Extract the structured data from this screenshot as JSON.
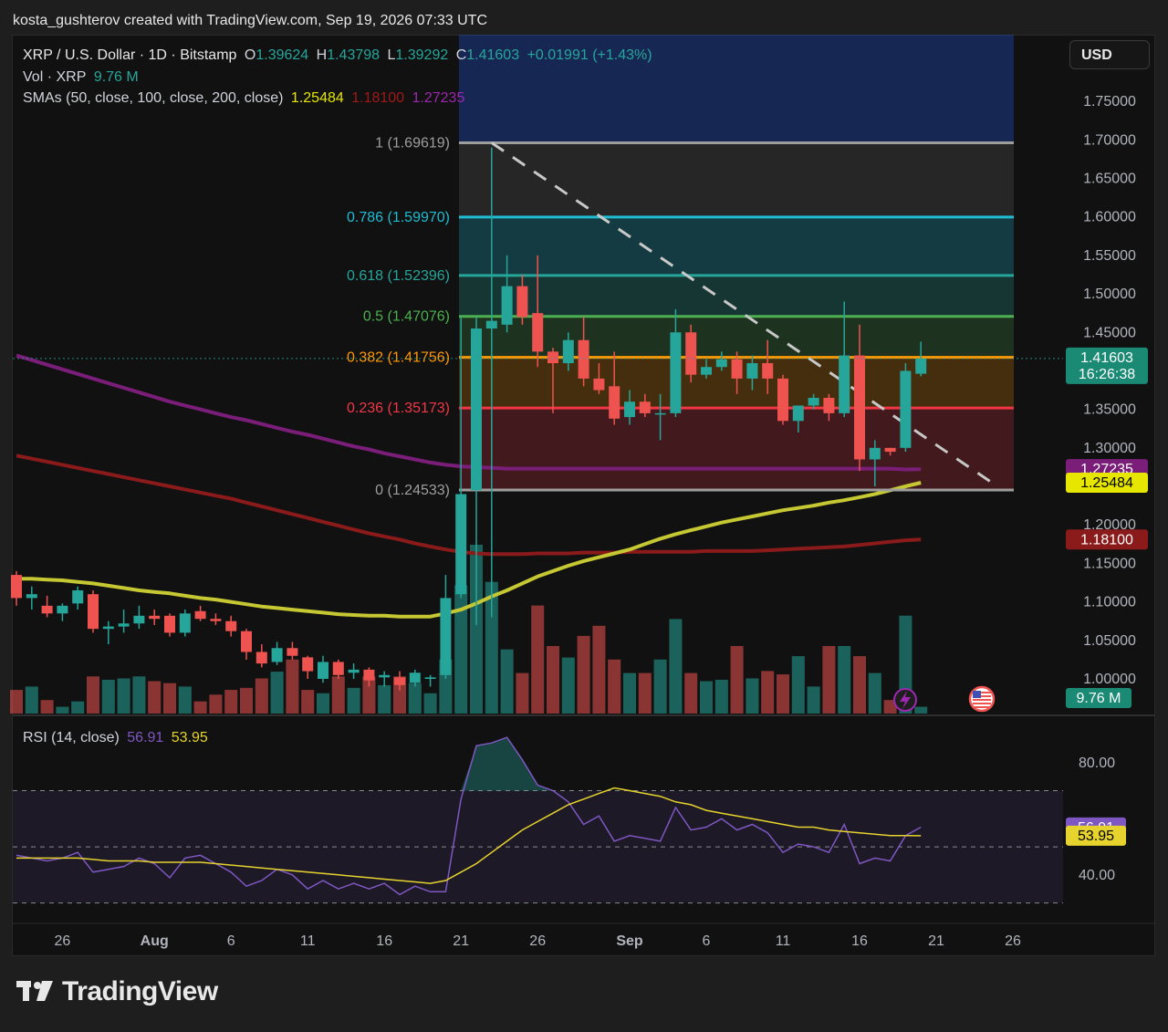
{
  "attribution": "kosta_gushterov created with TradingView.com, Sep 19, 2026 07:33 UTC",
  "legend": {
    "symbol": "XRP / U.S. Dollar · 1D · Bitstamp",
    "o_label": "O",
    "o": "1.39624",
    "h_label": "H",
    "h": "1.43798",
    "l_label": "L",
    "l": "1.39292",
    "c_label": "C",
    "c": "1.41603",
    "change": "+0.01991 (+1.43%)",
    "vol_label": "Vol · XRP",
    "vol": "9.76 M",
    "sma_label": "SMAs (50, close, 100, close, 200, close)",
    "sma50": "1.25484",
    "sma100": "1.18100",
    "sma200": "1.27235"
  },
  "currency_button": "USD",
  "rsi_legend": {
    "label": "RSI (14, close)",
    "rsi": "56.91",
    "ma": "53.95"
  },
  "brand": "TradingView",
  "colors": {
    "up": "#26a69a",
    "down": "#ef5350",
    "sma50": "#c5c832",
    "sma100": "#8b1a1a",
    "sma200": "#7b1e7a",
    "rsi": "#7e57c2",
    "rsi_ma": "#e6d32e"
  },
  "chart_data": [
    {
      "type": "candlestick",
      "title": "XRP / U.S. Dollar · 1D · Bitstamp",
      "ylim": [
        0.955,
        1.82
      ],
      "y_ticks": [
        "1.75000",
        "1.70000",
        "1.65000",
        "1.60000",
        "1.55000",
        "1.50000",
        "1.45000",
        "1.35000",
        "1.30000",
        "1.20000",
        "1.15000",
        "1.10000",
        "1.05000",
        "1.00000"
      ],
      "x_ticks": [
        "26",
        "Aug",
        "6",
        "11",
        "16",
        "21",
        "26",
        "Sep",
        "6",
        "11",
        "16",
        "21",
        "26"
      ],
      "candles": [
        {
          "d": "Jul 23",
          "o": 1.135,
          "h": 1.14,
          "l": 1.095,
          "c": 1.105
        },
        {
          "d": "Jul 24",
          "o": 1.105,
          "h": 1.12,
          "l": 1.09,
          "c": 1.11
        },
        {
          "d": "Jul 25",
          "o": 1.095,
          "h": 1.108,
          "l": 1.08,
          "c": 1.085
        },
        {
          "d": "Jul 26",
          "o": 1.085,
          "h": 1.098,
          "l": 1.075,
          "c": 1.095
        },
        {
          "d": "Jul 27",
          "o": 1.098,
          "h": 1.12,
          "l": 1.09,
          "c": 1.115
        },
        {
          "d": "Jul 28",
          "o": 1.11,
          "h": 1.115,
          "l": 1.06,
          "c": 1.065
        },
        {
          "d": "Jul 29",
          "o": 1.065,
          "h": 1.075,
          "l": 1.045,
          "c": 1.068
        },
        {
          "d": "Jul 30",
          "o": 1.068,
          "h": 1.09,
          "l": 1.06,
          "c": 1.072
        },
        {
          "d": "Jul 31",
          "o": 1.072,
          "h": 1.095,
          "l": 1.065,
          "c": 1.082
        },
        {
          "d": "Aug 1",
          "o": 1.082,
          "h": 1.09,
          "l": 1.07,
          "c": 1.078
        },
        {
          "d": "Aug 2",
          "o": 1.082,
          "h": 1.085,
          "l": 1.055,
          "c": 1.06
        },
        {
          "d": "Aug 3",
          "o": 1.06,
          "h": 1.09,
          "l": 1.055,
          "c": 1.085
        },
        {
          "d": "Aug 4",
          "o": 1.088,
          "h": 1.095,
          "l": 1.075,
          "c": 1.078
        },
        {
          "d": "Aug 5",
          "o": 1.078,
          "h": 1.085,
          "l": 1.07,
          "c": 1.075
        },
        {
          "d": "Aug 6",
          "o": 1.075,
          "h": 1.082,
          "l": 1.055,
          "c": 1.062
        },
        {
          "d": "Aug 7",
          "o": 1.062,
          "h": 1.065,
          "l": 1.025,
          "c": 1.035
        },
        {
          "d": "Aug 8",
          "o": 1.035,
          "h": 1.045,
          "l": 1.015,
          "c": 1.02
        },
        {
          "d": "Aug 9",
          "o": 1.022,
          "h": 1.048,
          "l": 1.018,
          "c": 1.04
        },
        {
          "d": "Aug 10",
          "o": 1.04,
          "h": 1.048,
          "l": 1.025,
          "c": 1.03
        },
        {
          "d": "Aug 11",
          "o": 1.028,
          "h": 1.03,
          "l": 1.0,
          "c": 1.01
        },
        {
          "d": "Aug 12",
          "o": 1.0,
          "h": 1.03,
          "l": 0.995,
          "c": 1.022
        },
        {
          "d": "Aug 13",
          "o": 1.022,
          "h": 1.025,
          "l": 1.0,
          "c": 1.005
        },
        {
          "d": "Aug 14",
          "o": 1.008,
          "h": 1.02,
          "l": 1.0,
          "c": 1.012
        },
        {
          "d": "Aug 15",
          "o": 1.012,
          "h": 1.015,
          "l": 0.99,
          "c": 0.998
        },
        {
          "d": "Aug 16",
          "o": 1.002,
          "h": 1.01,
          "l": 0.99,
          "c": 1.005
        },
        {
          "d": "Aug 17",
          "o": 1.002,
          "h": 1.01,
          "l": 0.985,
          "c": 0.992
        },
        {
          "d": "Aug 18",
          "o": 0.995,
          "h": 1.012,
          "l": 0.99,
          "c": 1.008
        },
        {
          "d": "Aug 19",
          "o": 1.0,
          "h": 1.005,
          "l": 0.99,
          "c": 1.002
        },
        {
          "d": "Aug 20",
          "o": 1.005,
          "h": 1.135,
          "l": 1.0,
          "c": 1.105
        },
        {
          "d": "Aug 21",
          "o": 1.11,
          "h": 1.47,
          "l": 1.105,
          "c": 1.24
        },
        {
          "d": "Aug 22",
          "o": 1.245,
          "h": 1.47,
          "l": 1.07,
          "c": 1.455
        },
        {
          "d": "Aug 23",
          "o": 1.455,
          "h": 1.69,
          "l": 1.08,
          "c": 1.465
        },
        {
          "d": "Aug 24",
          "o": 1.46,
          "h": 1.55,
          "l": 1.45,
          "c": 1.51
        },
        {
          "d": "Aug 25",
          "o": 1.51,
          "h": 1.525,
          "l": 1.46,
          "c": 1.47
        },
        {
          "d": "Aug 26",
          "o": 1.475,
          "h": 1.55,
          "l": 1.405,
          "c": 1.425
        },
        {
          "d": "Aug 27",
          "o": 1.425,
          "h": 1.43,
          "l": 1.345,
          "c": 1.41
        },
        {
          "d": "Aug 28",
          "o": 1.41,
          "h": 1.45,
          "l": 1.4,
          "c": 1.44
        },
        {
          "d": "Aug 29",
          "o": 1.44,
          "h": 1.47,
          "l": 1.38,
          "c": 1.39
        },
        {
          "d": "Aug 30",
          "o": 1.39,
          "h": 1.41,
          "l": 1.37,
          "c": 1.375
        },
        {
          "d": "Aug 31",
          "o": 1.38,
          "h": 1.425,
          "l": 1.33,
          "c": 1.338
        },
        {
          "d": "Sep 1",
          "o": 1.34,
          "h": 1.375,
          "l": 1.33,
          "c": 1.36
        },
        {
          "d": "Sep 2",
          "o": 1.36,
          "h": 1.37,
          "l": 1.34,
          "c": 1.345
        },
        {
          "d": "Sep 3",
          "o": 1.345,
          "h": 1.37,
          "l": 1.31,
          "c": 1.345
        },
        {
          "d": "Sep 4",
          "o": 1.345,
          "h": 1.48,
          "l": 1.34,
          "c": 1.45
        },
        {
          "d": "Sep 5",
          "o": 1.45,
          "h": 1.46,
          "l": 1.385,
          "c": 1.395
        },
        {
          "d": "Sep 6",
          "o": 1.395,
          "h": 1.415,
          "l": 1.39,
          "c": 1.405
        },
        {
          "d": "Sep 7",
          "o": 1.405,
          "h": 1.425,
          "l": 1.4,
          "c": 1.415
        },
        {
          "d": "Sep 8",
          "o": 1.415,
          "h": 1.425,
          "l": 1.37,
          "c": 1.39
        },
        {
          "d": "Sep 9",
          "o": 1.39,
          "h": 1.42,
          "l": 1.375,
          "c": 1.41
        },
        {
          "d": "Sep 10",
          "o": 1.41,
          "h": 1.44,
          "l": 1.37,
          "c": 1.39
        },
        {
          "d": "Sep 11",
          "o": 1.39,
          "h": 1.395,
          "l": 1.33,
          "c": 1.335
        },
        {
          "d": "Sep 12",
          "o": 1.335,
          "h": 1.355,
          "l": 1.32,
          "c": 1.355
        },
        {
          "d": "Sep 13",
          "o": 1.355,
          "h": 1.37,
          "l": 1.35,
          "c": 1.365
        },
        {
          "d": "Sep 14",
          "o": 1.365,
          "h": 1.37,
          "l": 1.335,
          "c": 1.345
        },
        {
          "d": "Sep 15",
          "o": 1.345,
          "h": 1.49,
          "l": 1.34,
          "c": 1.42
        },
        {
          "d": "Sep 16",
          "o": 1.42,
          "h": 1.46,
          "l": 1.27,
          "c": 1.285
        },
        {
          "d": "Sep 17",
          "o": 1.285,
          "h": 1.31,
          "l": 1.25,
          "c": 1.3
        },
        {
          "d": "Sep 18",
          "o": 1.3,
          "h": 1.3,
          "l": 1.29,
          "c": 1.295
        },
        {
          "d": "Sep 19",
          "o": 1.3,
          "h": 1.41,
          "l": 1.295,
          "c": 1.4
        },
        {
          "d": "Sep 20",
          "o": 1.39624,
          "h": 1.43798,
          "l": 1.39292,
          "c": 1.41603
        }
      ],
      "volume_relative": [
        0.35,
        0.4,
        0.2,
        0.1,
        0.18,
        0.55,
        0.5,
        0.52,
        0.55,
        0.48,
        0.45,
        0.4,
        0.18,
        0.28,
        0.35,
        0.38,
        0.52,
        0.62,
        0.8,
        0.35,
        0.3,
        0.55,
        0.38,
        0.55,
        0.42,
        0.55,
        0.45,
        0.3,
        0.8,
        1.9,
        2.5,
        1.95,
        0.95,
        0.6,
        1.6,
        1.0,
        0.83,
        1.15,
        1.3,
        0.8,
        0.6,
        0.6,
        0.8,
        1.4,
        0.6,
        0.48,
        0.5,
        1.0,
        0.52,
        0.63,
        0.58,
        0.85,
        0.4,
        1.0,
        1.0,
        0.85,
        0.6,
        0.2,
        1.45,
        0.1
      ],
      "sma50": [
        1.13,
        1.13,
        1.129,
        1.128,
        1.126,
        1.124,
        1.121,
        1.118,
        1.115,
        1.113,
        1.111,
        1.108,
        1.105,
        1.103,
        1.1,
        1.097,
        1.094,
        1.092,
        1.09,
        1.088,
        1.086,
        1.084,
        1.083,
        1.082,
        1.082,
        1.081,
        1.081,
        1.081,
        1.085,
        1.09,
        1.098,
        1.107,
        1.115,
        1.124,
        1.133,
        1.14,
        1.147,
        1.153,
        1.158,
        1.163,
        1.168,
        1.175,
        1.182,
        1.188,
        1.193,
        1.198,
        1.203,
        1.207,
        1.211,
        1.215,
        1.219,
        1.222,
        1.225,
        1.229,
        1.232,
        1.236,
        1.24,
        1.245,
        1.25,
        1.25484
      ],
      "sma100": [
        1.29,
        1.286,
        1.282,
        1.278,
        1.274,
        1.27,
        1.266,
        1.262,
        1.258,
        1.254,
        1.25,
        1.246,
        1.242,
        1.238,
        1.234,
        1.229,
        1.224,
        1.219,
        1.214,
        1.209,
        1.204,
        1.199,
        1.194,
        1.189,
        1.185,
        1.181,
        1.176,
        1.172,
        1.168,
        1.165,
        1.163,
        1.162,
        1.162,
        1.162,
        1.163,
        1.163,
        1.163,
        1.164,
        1.164,
        1.164,
        1.165,
        1.165,
        1.165,
        1.165,
        1.165,
        1.166,
        1.166,
        1.166,
        1.166,
        1.167,
        1.168,
        1.169,
        1.17,
        1.171,
        1.172,
        1.174,
        1.176,
        1.178,
        1.18,
        1.181
      ],
      "sma200": [
        1.42,
        1.414,
        1.408,
        1.402,
        1.396,
        1.39,
        1.384,
        1.378,
        1.372,
        1.366,
        1.36,
        1.355,
        1.35,
        1.345,
        1.34,
        1.336,
        1.331,
        1.326,
        1.321,
        1.317,
        1.312,
        1.307,
        1.302,
        1.298,
        1.293,
        1.289,
        1.285,
        1.281,
        1.278,
        1.276,
        1.275,
        1.274,
        1.273,
        1.273,
        1.273,
        1.273,
        1.273,
        1.273,
        1.273,
        1.273,
        1.273,
        1.273,
        1.273,
        1.273,
        1.273,
        1.273,
        1.273,
        1.273,
        1.273,
        1.273,
        1.273,
        1.273,
        1.273,
        1.273,
        1.273,
        1.273,
        1.273,
        1.273,
        1.272,
        1.27235
      ],
      "fibonacci": [
        {
          "ratio": "1",
          "price": 1.69619,
          "label": "1 (1.69619)",
          "color": "#9e9e9e"
        },
        {
          "ratio": "0.786",
          "price": 1.5997,
          "label": "0.786 (1.59970)",
          "color": "#1fbcd2"
        },
        {
          "ratio": "0.618",
          "price": 1.52396,
          "label": "0.618 (1.52396)",
          "color": "#26a69a"
        },
        {
          "ratio": "0.5",
          "price": 1.47076,
          "label": "0.5 (1.47076)",
          "color": "#4caf50"
        },
        {
          "ratio": "0.382",
          "price": 1.41756,
          "label": "0.382 (1.41756)",
          "color": "#ff9800"
        },
        {
          "ratio": "0.236",
          "price": 1.35173,
          "label": "0.236 (1.35173)",
          "color": "#f23645"
        },
        {
          "ratio": "0",
          "price": 1.24533,
          "label": "0 (1.24533)",
          "color": "#9e9e9e"
        }
      ],
      "price_labels": [
        {
          "price": 1.41603,
          "text": "1.41603",
          "sub": "16:26:38",
          "color": "#1b8a74"
        },
        {
          "price": 1.27235,
          "text": "1.27235",
          "color": "#7b1e7a"
        },
        {
          "price": 1.25484,
          "text": "1.25484",
          "color": "#e6e600",
          "text_color": "#000000"
        },
        {
          "price": 1.181,
          "text": "1.18100",
          "color": "#8b1a1a"
        }
      ],
      "volume_label": "9.76 M"
    },
    {
      "type": "line",
      "title": "RSI (14, close)",
      "ylim": [
        25,
        90
      ],
      "y_ticks": [
        "80.00",
        "40.00"
      ],
      "levels": [
        70,
        50,
        30
      ],
      "rsi": [
        47,
        46,
        45,
        46,
        48,
        41,
        42,
        43,
        46,
        44,
        39,
        46,
        47,
        44,
        41,
        36,
        38,
        42,
        40,
        35,
        38,
        35,
        37,
        35,
        37,
        33,
        36,
        34,
        34,
        67,
        86,
        87,
        89,
        81,
        72,
        70,
        66,
        58,
        61,
        52,
        54,
        53,
        52,
        64,
        56,
        57,
        60,
        56,
        58,
        55,
        48,
        51,
        50,
        48,
        58,
        44,
        46,
        45,
        54,
        57
      ],
      "rsi_ma": [
        46,
        46,
        46,
        46,
        46,
        45.5,
        45,
        45,
        45,
        44.5,
        44.5,
        44.5,
        44.5,
        44,
        43.5,
        43,
        42.5,
        42,
        41.5,
        41,
        40.5,
        40,
        39.5,
        39,
        38.5,
        38,
        37.5,
        37,
        38,
        41,
        44,
        48,
        52,
        56,
        59,
        62,
        65,
        67,
        69,
        71,
        70,
        69,
        68,
        66,
        65,
        63,
        62,
        61,
        60,
        59,
        58,
        57,
        57,
        56,
        55.5,
        55,
        54.5,
        54,
        54,
        53.95
      ]
    }
  ]
}
